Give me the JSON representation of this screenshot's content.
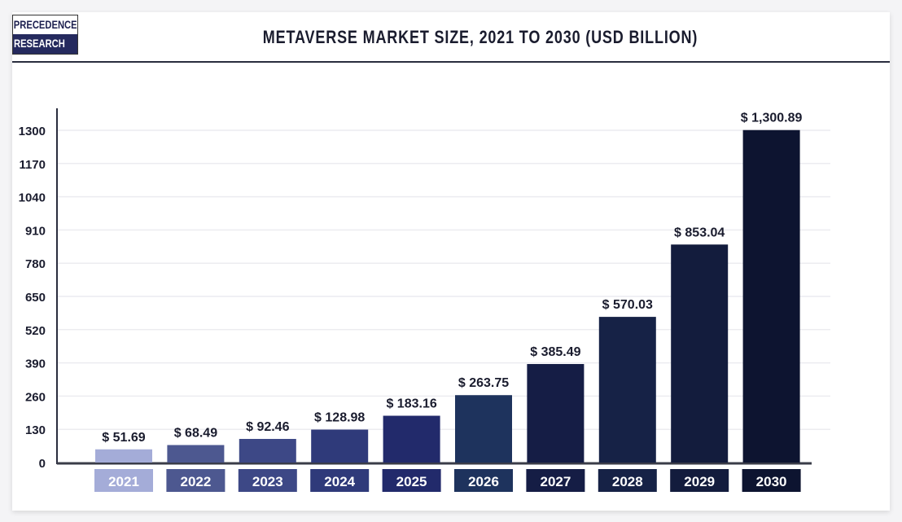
{
  "logo": {
    "line1": "PRECEDENCE",
    "line2": "RESEARCH"
  },
  "chart_data": {
    "type": "bar",
    "title": "METAVERSE MARKET SIZE, 2021 TO 2030 (USD BILLION)",
    "xlabel": "",
    "ylabel": "",
    "categories": [
      "2021",
      "2022",
      "2023",
      "2024",
      "2025",
      "2026",
      "2027",
      "2028",
      "2029",
      "2030"
    ],
    "values": [
      51.69,
      68.49,
      92.46,
      128.98,
      183.16,
      263.75,
      385.49,
      570.03,
      853.04,
      1300.89
    ],
    "data_labels": [
      "$ 51.69",
      "$ 68.49",
      "$ 92.46",
      "$ 128.98",
      "$ 183.16",
      "$ 263.75",
      "$ 385.49",
      "$ 570.03",
      "$ 853.04",
      "$ 1,300.89"
    ],
    "yticks": [
      0,
      130,
      260,
      390,
      520,
      650,
      780,
      910,
      1040,
      1170,
      1300
    ],
    "ylim": [
      0,
      1300
    ],
    "grid": true,
    "colors": [
      "#a4acd8",
      "#4d5890",
      "#3d4886",
      "#2f3a7a",
      "#222a6b",
      "#1e335d",
      "#151d45",
      "#162246",
      "#131c3d",
      "#0d1430"
    ]
  }
}
